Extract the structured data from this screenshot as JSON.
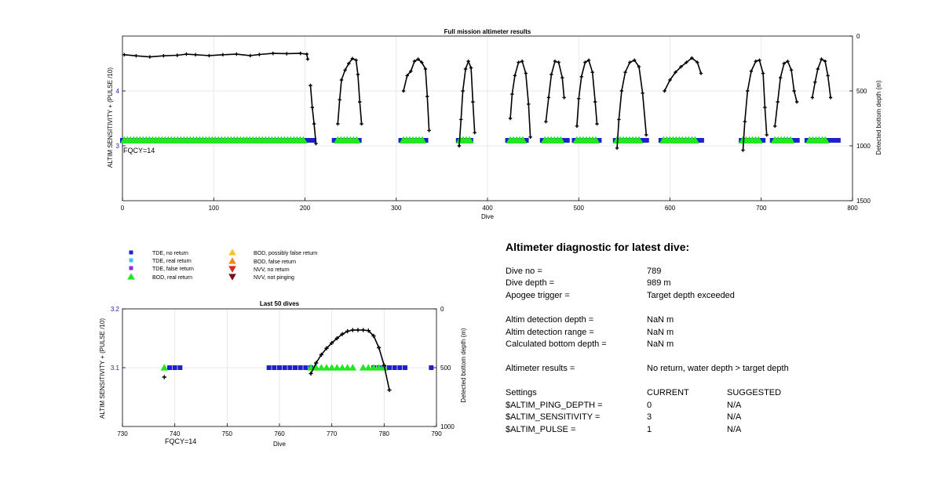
{
  "colors": {
    "data_line": "#000000",
    "tde_no_return": "#1f22c9",
    "tde_real_return": "#3fc4e6",
    "tde_false_return": "#8a2be2",
    "bod_real_return": "#22e622",
    "bod_possibly_false": "#f4c430",
    "bod_false_return": "#f08a1c",
    "nvv_no_return": "#d62b1e",
    "nvv_not_pinging": "#7a1010",
    "left_axis_label": "#2020c0",
    "fqcy_text": "#999999"
  },
  "chart_data": [
    {
      "type": "scatter",
      "title": "Full mission altimeter results",
      "xlabel": "Dive",
      "ylabel_left": "ALTIM SENSITIVITY + (PULSE /10)",
      "ylabel_right": "Detected bottom depth (m)",
      "annotation": "FQCY=14",
      "xlim": [
        0,
        800
      ],
      "xticks": [
        0,
        100,
        200,
        300,
        400,
        500,
        600,
        700,
        800
      ],
      "ylim_left": [
        2,
        5
      ],
      "yticks_left": [
        3,
        4
      ],
      "ylim_right_reversed": [
        0,
        1500
      ],
      "yticks_right": [
        0,
        500,
        1000,
        1500
      ],
      "grid": true,
      "series": [
        {
          "name": "TDE, no return",
          "marker": "square",
          "color_key": "tde_no_return",
          "y": 3.1,
          "x_ranges": [
            [
              0,
              212
            ],
            [
              232,
              262
            ],
            [
              305,
              335
            ],
            [
              368,
              385
            ],
            [
              422,
              445
            ],
            [
              460,
              490
            ],
            [
              495,
              525
            ],
            [
              540,
              575
            ],
            [
              590,
              635
            ],
            [
              678,
              705
            ],
            [
              712,
              742
            ],
            [
              750,
              785
            ]
          ]
        },
        {
          "name": "BOD, real return",
          "marker": "triangle",
          "color_key": "bod_real_return",
          "y": 3.1,
          "x_ranges": [
            [
              2,
              200
            ],
            [
              236,
              258
            ],
            [
              308,
              330
            ],
            [
              370,
              382
            ],
            [
              425,
              440
            ],
            [
              463,
              483
            ],
            [
              498,
              520
            ],
            [
              542,
              568
            ],
            [
              593,
              628
            ],
            [
              680,
              700
            ],
            [
              715,
              735
            ],
            [
              753,
              772
            ]
          ]
        },
        {
          "name": "Detected bottom depth",
          "marker": "plus",
          "color_key": "data_line",
          "axis": "right",
          "segments": [
            [
              [
                2,
                170
              ],
              [
                15,
                180
              ],
              [
                30,
                190
              ],
              [
                45,
                180
              ],
              [
                60,
                175
              ],
              [
                70,
                165
              ],
              [
                80,
                170
              ],
              [
                95,
                178
              ],
              [
                110,
                170
              ],
              [
                125,
                165
              ],
              [
                140,
                178
              ],
              [
                150,
                168
              ],
              [
                165,
                158
              ],
              [
                180,
                160
              ],
              [
                195,
                158
              ],
              [
                202,
                165
              ],
              [
                203,
                210
              ]
            ],
            [
              [
                206,
                450
              ],
              [
                208,
                650
              ],
              [
                210,
                800
              ],
              [
                212,
                980
              ]
            ],
            [
              [
                236,
                800
              ],
              [
                238,
                580
              ],
              [
                240,
                400
              ],
              [
                244,
                310
              ],
              [
                248,
                250
              ],
              [
                252,
                205
              ],
              [
                256,
                220
              ],
              [
                258,
                350
              ],
              [
                260,
                600
              ],
              [
                262,
                800
              ]
            ],
            [
              [
                308,
                500
              ],
              [
                312,
                360
              ],
              [
                316,
                320
              ],
              [
                320,
                230
              ],
              [
                324,
                210
              ],
              [
                328,
                240
              ],
              [
                332,
                300
              ],
              [
                334,
                550
              ],
              [
                336,
                860
              ]
            ],
            [
              [
                369,
                1000
              ],
              [
                371,
                760
              ],
              [
                373,
                500
              ],
              [
                376,
                300
              ],
              [
                379,
                230
              ],
              [
                382,
                290
              ],
              [
                384,
                600
              ],
              [
                386,
                880
              ]
            ],
            [
              [
                425,
                750
              ],
              [
                427,
                530
              ],
              [
                430,
                360
              ],
              [
                434,
                240
              ],
              [
                438,
                230
              ],
              [
                442,
                340
              ],
              [
                445,
                620
              ],
              [
                447,
                920
              ]
            ],
            [
              [
                464,
                780
              ],
              [
                467,
                560
              ],
              [
                470,
                350
              ],
              [
                474,
                230
              ],
              [
                478,
                240
              ],
              [
                482,
                380
              ],
              [
                484,
                560
              ]
            ],
            [
              [
                498,
                820
              ],
              [
                500,
                570
              ],
              [
                503,
                370
              ],
              [
                507,
                240
              ],
              [
                511,
                220
              ],
              [
                515,
                330
              ],
              [
                518,
                600
              ],
              [
                520,
                800
              ]
            ],
            [
              [
                542,
                1020
              ],
              [
                544,
                760
              ],
              [
                547,
                500
              ],
              [
                551,
                330
              ],
              [
                556,
                240
              ],
              [
                561,
                220
              ],
              [
                566,
                280
              ],
              [
                570,
                520
              ],
              [
                574,
                900
              ]
            ],
            [
              [
                594,
                500
              ],
              [
                600,
                400
              ],
              [
                606,
                330
              ],
              [
                612,
                280
              ],
              [
                618,
                240
              ],
              [
                624,
                200
              ],
              [
                630,
                240
              ],
              [
                634,
                340
              ]
            ],
            [
              [
                680,
                1040
              ],
              [
                682,
                780
              ],
              [
                685,
                500
              ],
              [
                689,
                320
              ],
              [
                694,
                230
              ],
              [
                698,
                220
              ],
              [
                702,
                340
              ],
              [
                704,
                650
              ],
              [
                706,
                900
              ]
            ],
            [
              [
                715,
                820
              ],
              [
                718,
                600
              ],
              [
                721,
                380
              ],
              [
                725,
                250
              ],
              [
                729,
                230
              ],
              [
                733,
                310
              ],
              [
                736,
                500
              ],
              [
                739,
                600
              ]
            ],
            [
              [
                756,
                560
              ],
              [
                759,
                420
              ],
              [
                762,
                300
              ],
              [
                766,
                210
              ],
              [
                770,
                230
              ],
              [
                773,
                360
              ],
              [
                776,
                560
              ]
            ]
          ]
        }
      ]
    },
    {
      "type": "scatter",
      "title": "Last 50 dives",
      "xlabel": "Dive",
      "ylabel_left": "ALTIM SENSITIVITY + (PULSE /10)",
      "ylabel_right": "Detected bottom depth (m)",
      "annotation": "FQCY=14",
      "xlim": [
        730,
        790
      ],
      "xticks": [
        730,
        740,
        750,
        760,
        770,
        780,
        790
      ],
      "ylim_left": [
        3.0,
        3.2
      ],
      "yticks_left": [
        "3.1",
        "3.2"
      ],
      "ylim_right_reversed": [
        0,
        1000
      ],
      "yticks_right": [
        0,
        500,
        1000
      ],
      "grid": true,
      "series": [
        {
          "name": "TDE, no return",
          "marker": "square",
          "color_key": "tde_no_return",
          "y": 3.1,
          "x": [
            739,
            740,
            741,
            758,
            759,
            760,
            761,
            762,
            763,
            764,
            765,
            766,
            778,
            779,
            780,
            781,
            782,
            783,
            784,
            789
          ]
        },
        {
          "name": "BOD, real return",
          "marker": "triangle",
          "color_key": "bod_real_return",
          "y": 3.1,
          "x": [
            738,
            766,
            767,
            768,
            769,
            770,
            771,
            772,
            773,
            774,
            776,
            777,
            778,
            779,
            780
          ]
        },
        {
          "name": "Detected bottom depth (isolated)",
          "marker": "plus",
          "color_key": "data_line",
          "axis": "right",
          "points": [
            [
              738,
              580
            ]
          ]
        },
        {
          "name": "Detected bottom depth",
          "marker": "plus",
          "color_key": "data_line",
          "axis": "right",
          "points": [
            [
              766,
              550
            ],
            [
              767,
              460
            ],
            [
              768,
              390
            ],
            [
              769,
              335
            ],
            [
              770,
              290
            ],
            [
              771,
              250
            ],
            [
              772,
              215
            ],
            [
              773,
              190
            ],
            [
              774,
              180
            ],
            [
              775,
              180
            ],
            [
              776,
              180
            ],
            [
              777,
              185
            ],
            [
              778,
              230
            ],
            [
              779,
              330
            ],
            [
              780,
              480
            ],
            [
              781,
              690
            ]
          ]
        }
      ]
    }
  ],
  "legend": [
    {
      "label": "TDE, no return",
      "marker": "square",
      "color_key": "tde_no_return"
    },
    {
      "label": "TDE, real return",
      "marker": "square",
      "color_key": "tde_real_return"
    },
    {
      "label": "TDE, false return",
      "marker": "square",
      "color_key": "tde_false_return"
    },
    {
      "label": "BOD, real return",
      "marker": "triangle-up",
      "color_key": "bod_real_return"
    },
    {
      "label": "BOD, possibly false return",
      "marker": "triangle-up",
      "color_key": "bod_possibly_false"
    },
    {
      "label": "BOD, false return",
      "marker": "triangle-up",
      "color_key": "bod_false_return"
    },
    {
      "label": "NVV, no return",
      "marker": "triangle-down",
      "color_key": "nvv_no_return"
    },
    {
      "label": "NVV, not pinging",
      "marker": "triangle-down",
      "color_key": "nvv_not_pinging"
    }
  ],
  "diagnostic": {
    "title": "Altimeter diagnostic for latest dive:",
    "dive_no": {
      "label": "Dive no =",
      "value": "789"
    },
    "dive_depth": {
      "label": "Dive depth =",
      "value": "989 m"
    },
    "apogee_trigger": {
      "label": "Apogee trigger =",
      "value": "Target depth exceeded"
    },
    "altim_detection_depth": {
      "label": "Altim detection depth =",
      "value": "NaN m"
    },
    "altim_detection_range": {
      "label": "Altim detection range =",
      "value": "NaN m"
    },
    "calc_bottom_depth": {
      "label": "Calculated bottom depth =",
      "value": "NaN m"
    },
    "altimeter_results": {
      "label": "Altimeter results =",
      "value": "No return, water depth > target depth"
    },
    "settings_header": {
      "label": "Settings",
      "current": "CURRENT",
      "suggested": "SUGGESTED"
    },
    "ping_depth": {
      "label": "$ALTIM_PING_DEPTH =",
      "current": "0",
      "suggested": "N/A"
    },
    "sensitivity": {
      "label": "$ALTIM_SENSITIVITY =",
      "current": "3",
      "suggested": "N/A"
    },
    "pulse": {
      "label": "$ALTIM_PULSE =",
      "current": "1",
      "suggested": "N/A"
    }
  }
}
